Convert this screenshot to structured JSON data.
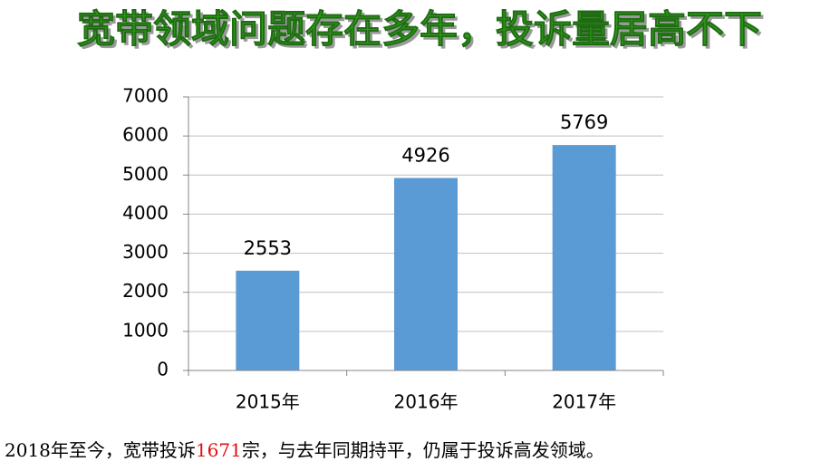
{
  "chart_data": {
    "type": "bar",
    "title": "宽带领域问题存在多年，投诉量居高不下",
    "categories": [
      "2015年",
      "2016年",
      "2017年"
    ],
    "values": [
      2553,
      4926,
      5769
    ],
    "color": "#5b9bd5",
    "ylim": [
      0,
      7000
    ],
    "yticks": [
      0,
      1000,
      2000,
      3000,
      4000,
      5000,
      6000,
      7000
    ],
    "grid": true
  },
  "caption": {
    "before": "2018年至今，宽带投诉",
    "highlight": "1671",
    "after": "宗，与去年同期持平，仍属于投诉高发领域。"
  }
}
